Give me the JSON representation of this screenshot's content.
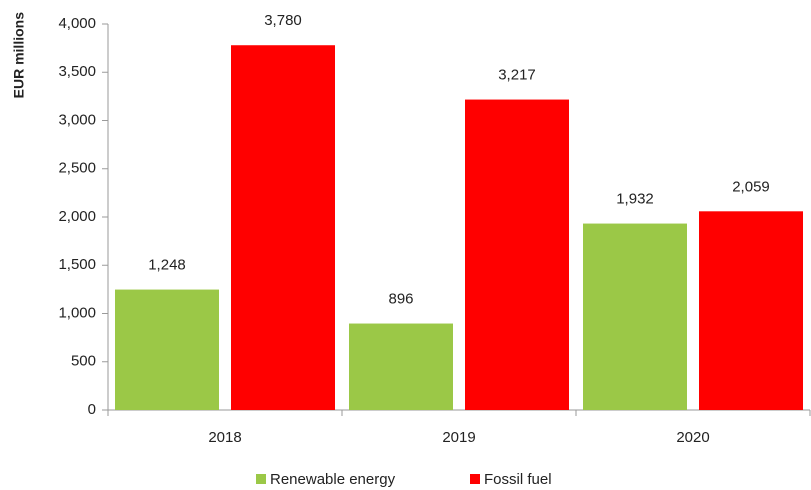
{
  "chart_data": {
    "type": "bar",
    "y_label": "EUR millions",
    "categories": [
      "2018",
      "2019",
      "2020"
    ],
    "series": [
      {
        "name": "Renewable energy",
        "color": "#9bc847",
        "values": [
          1248,
          896,
          1932
        ],
        "value_labels": [
          "1,248",
          "896",
          "1,932"
        ]
      },
      {
        "name": "Fossil fuel",
        "color": "#ff0000",
        "values": [
          3780,
          3217,
          2059
        ],
        "value_labels": [
          "3,780",
          "3,217",
          "2,059"
        ]
      }
    ],
    "ylim": [
      0,
      4000
    ],
    "yticks": [
      0,
      500,
      {
        "value": 1000,
        "label": "1,000"
      },
      {
        "value": 1500,
        "label": "1,500"
      },
      {
        "value": 2000,
        "label": "2,000"
      },
      {
        "value": 2500,
        "label": "2,500"
      },
      {
        "value": 3000,
        "label": "3,000"
      },
      {
        "value": 3500,
        "label": "3,500"
      },
      {
        "value": 4000,
        "label": "4,000"
      }
    ],
    "grid": false,
    "legend": "bottom"
  }
}
